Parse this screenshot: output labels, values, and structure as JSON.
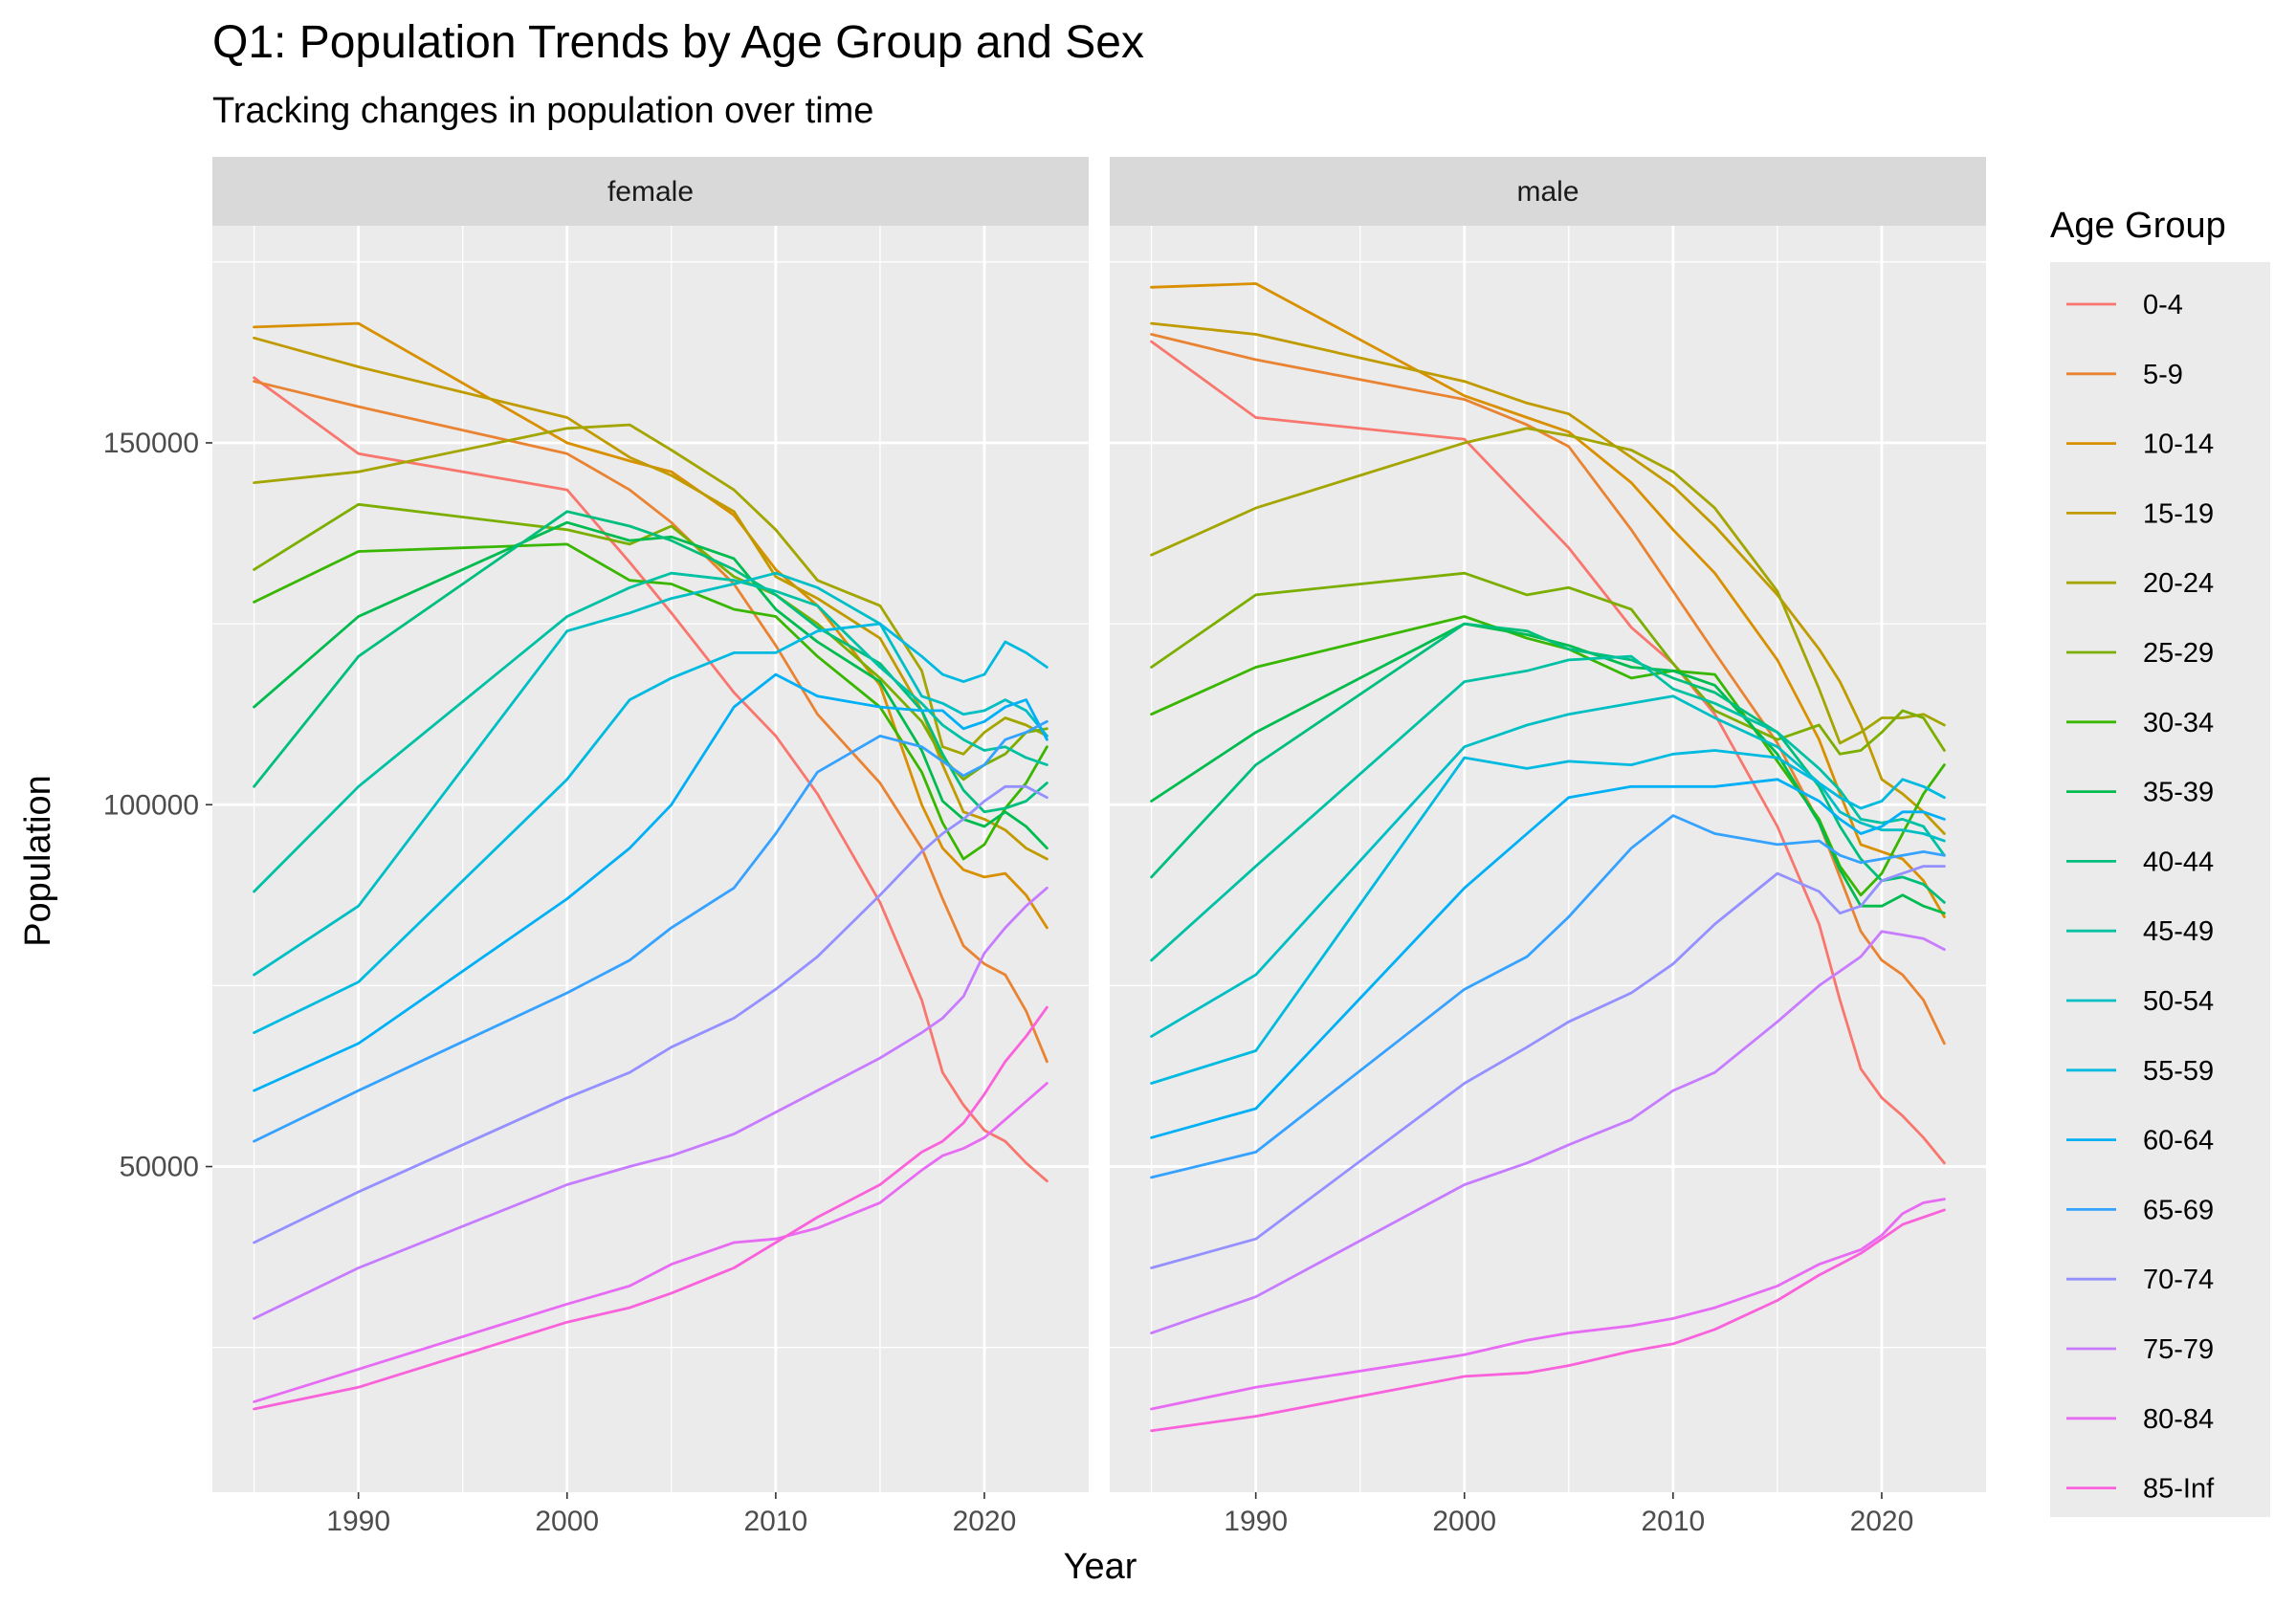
{
  "chart_data": {
    "type": "line",
    "title": "Q1: Population Trends by Age Group and Sex",
    "subtitle": "Tracking changes in population over time",
    "xlabel": "Year",
    "ylabel": "Population",
    "xlim": [
      1983,
      2025
    ],
    "ylim": [
      5000,
      180000
    ],
    "x_ticks": [
      1990,
      2000,
      2010,
      2020
    ],
    "y_ticks": [
      50000,
      100000,
      150000
    ],
    "grid": true,
    "legend": {
      "title": "Age Group",
      "placement": "right"
    },
    "x": [
      1985,
      1990,
      2000,
      2003,
      2005,
      2008,
      2010,
      2012,
      2015,
      2017,
      2018,
      2019,
      2020,
      2021,
      2022,
      2023
    ],
    "series_names": [
      "0-4",
      "5-9",
      "10-14",
      "15-19",
      "20-24",
      "25-29",
      "30-34",
      "35-39",
      "40-44",
      "45-49",
      "50-54",
      "55-59",
      "60-64",
      "65-69",
      "70-74",
      "75-79",
      "80-84",
      "85-Inf"
    ],
    "colors": [
      "#F8766D",
      "#EA8331",
      "#D89000",
      "#C09B00",
      "#A3A500",
      "#7CAE00",
      "#39B600",
      "#00BB4E",
      "#00BF7D",
      "#00C1A3",
      "#00BFC4",
      "#00BAE0",
      "#00B0F6",
      "#35A2FF",
      "#9590FF",
      "#C77CFF",
      "#E76BF3",
      "#FA62DB",
      "#FF62BC",
      "#FF6C91"
    ],
    "panels": [
      {
        "label": "female",
        "series": [
          {
            "name": "0-4",
            "values": [
              159000,
              148500,
              143500,
              133500,
              126500,
              115500,
              109500,
              101500,
              86500,
              73000,
              63000,
              58500,
              55000,
              53500,
              50500,
              48000
            ]
          },
          {
            "name": "5-9",
            "values": [
              158500,
              155000,
              148500,
              143500,
              139000,
              130500,
              122000,
              112500,
              103000,
              94000,
              87000,
              80500,
              78000,
              76500,
              71500,
              64500
            ]
          },
          {
            "name": "10-14",
            "values": [
              166000,
              166500,
              150000,
              147500,
              146000,
              140000,
              132500,
              127500,
              116500,
              100000,
              94000,
              91000,
              90000,
              90500,
              87500,
              83000
            ]
          },
          {
            "name": "15-19",
            "values": [
              164500,
              160500,
              153500,
              148000,
              145500,
              140500,
              131500,
              128500,
              123000,
              113000,
              105500,
              99000,
              98000,
              96500,
              94000,
              92500
            ]
          },
          {
            "name": "20-24",
            "values": [
              144500,
              146000,
              152000,
              152500,
              149000,
              143500,
              138000,
              131000,
              127500,
              118500,
              108000,
              107000,
              110000,
              112000,
              111000,
              109500
            ]
          },
          {
            "name": "25-29",
            "values": [
              132500,
              141500,
              138000,
              136000,
              138500,
              131500,
              129000,
              125000,
              117500,
              111500,
              106500,
              103500,
              105500,
              107000,
              110000,
              110500
            ]
          },
          {
            "name": "30-34",
            "values": [
              128000,
              135000,
              136000,
              131000,
              130500,
              127000,
              126000,
              120500,
              113500,
              104500,
              97500,
              92500,
              94500,
              99500,
              103000,
              108000
            ]
          },
          {
            "name": "35-39",
            "values": [
              113500,
              126000,
              139000,
              136500,
              137000,
              134000,
              127000,
              122500,
              117000,
              107500,
              100500,
              98000,
              97000,
              99000,
              97000,
              94000
            ]
          },
          {
            "name": "40-44",
            "values": [
              102500,
              120500,
              140500,
              138500,
              136500,
              132500,
              129000,
              124500,
              119500,
              113000,
              107000,
              102000,
              99000,
              99500,
              100500,
              103000
            ]
          },
          {
            "name": "45-49",
            "values": [
              88000,
              102500,
              126000,
              130000,
              132000,
              131000,
              129500,
              127500,
              119000,
              114000,
              111000,
              109000,
              107500,
              108000,
              106500,
              105500
            ]
          },
          {
            "name": "50-54",
            "values": [
              76500,
              86000,
              124000,
              126500,
              128500,
              130500,
              132000,
              130000,
              125000,
              115000,
              114000,
              112500,
              113000,
              114500,
              113000,
              109500
            ]
          },
          {
            "name": "55-59",
            "values": [
              68500,
              75500,
              103500,
              114500,
              117500,
              121000,
              121000,
              124000,
              125000,
              120500,
              118000,
              117000,
              118000,
              122500,
              121000,
              119000
            ]
          },
          {
            "name": "60-64",
            "values": [
              60500,
              67000,
              87000,
              94000,
              100000,
              113500,
              118000,
              115000,
              113500,
              113000,
              113000,
              110500,
              111500,
              113500,
              114500,
              109000
            ]
          },
          {
            "name": "65-69",
            "values": [
              53500,
              60500,
              74000,
              78500,
              83000,
              88500,
              96000,
              104500,
              109500,
              108000,
              106000,
              104000,
              105500,
              109000,
              110000,
              111500
            ]
          },
          {
            "name": "70-74",
            "values": [
              39500,
              46500,
              59500,
              63000,
              66500,
              70500,
              74500,
              79000,
              87500,
              93500,
              96000,
              98000,
              100500,
              102500,
              102500,
              101000
            ]
          },
          {
            "name": "75-79",
            "values": [
              29000,
              36000,
              47500,
              50000,
              51500,
              54500,
              57500,
              60500,
              65000,
              68500,
              70500,
              73500,
              79500,
              83000,
              86000,
              88500
            ]
          },
          {
            "name": "80-84",
            "values": [
              17500,
              22000,
              31000,
              33500,
              36500,
              39500,
              40000,
              41500,
              45000,
              49500,
              51500,
              52500,
              54000,
              56500,
              59000,
              61500
            ]
          },
          {
            "name": "85-Inf",
            "values": [
              16500,
              19500,
              28500,
              30500,
              32500,
              36000,
              39500,
              43000,
              47500,
              52000,
              53500,
              56000,
              60000,
              64500,
              68000,
              72000
            ]
          }
        ]
      },
      {
        "label": "male",
        "series": [
          {
            "name": "0-4",
            "values": [
              164000,
              153500,
              150500,
              141500,
              135500,
              124500,
              119500,
              112500,
              97000,
              83500,
              73000,
              63500,
              59500,
              57000,
              54000,
              50500
            ]
          },
          {
            "name": "5-9",
            "values": [
              165000,
              161500,
              156000,
              152500,
              149500,
              138000,
              129500,
              121000,
              108500,
              97500,
              90000,
              82500,
              78500,
              76500,
              73000,
              67000
            ]
          },
          {
            "name": "10-14",
            "values": [
              171500,
              172000,
              156500,
              153500,
              151500,
              144500,
              138000,
              132000,
              120000,
              109000,
              101500,
              94500,
              93500,
              92500,
              89500,
              84500
            ]
          },
          {
            "name": "15-19",
            "values": [
              166500,
              165000,
              158500,
              155500,
              154000,
              148000,
              144000,
              138500,
              129000,
              121500,
              117000,
              111000,
              103500,
              101500,
              99000,
              96000
            ]
          },
          {
            "name": "20-24",
            "values": [
              134500,
              141000,
              150000,
              152000,
              151000,
              149000,
              146000,
              141000,
              129500,
              116000,
              108500,
              110000,
              112000,
              112000,
              112500,
              111000
            ]
          },
          {
            "name": "25-29",
            "values": [
              119000,
              129000,
              132000,
              129000,
              130000,
              127000,
              119500,
              113000,
              109000,
              111000,
              107000,
              107500,
              110000,
              113000,
              112000,
              107500
            ]
          },
          {
            "name": "30-34",
            "values": [
              112500,
              119000,
              126000,
              123000,
              121500,
              117500,
              118500,
              118000,
              106000,
              98000,
              91500,
              87500,
              90500,
              96000,
              101500,
              105500
            ]
          },
          {
            "name": "35-39",
            "values": [
              100500,
              110000,
              125000,
              123500,
              122000,
              119000,
              118500,
              116500,
              107000,
              97500,
              91000,
              86000,
              86000,
              87500,
              86000,
              85000
            ]
          },
          {
            "name": "40-44",
            "values": [
              90000,
              105500,
              125000,
              124000,
              121500,
              120000,
              117500,
              115500,
              110000,
              102500,
              97000,
              92500,
              89500,
              90000,
              89000,
              86500
            ]
          },
          {
            "name": "45-49",
            "values": [
              78500,
              91500,
              117000,
              118500,
              120000,
              120500,
              116000,
              114000,
              110000,
              105000,
              102000,
              98000,
              97500,
              98000,
              97000,
              93000
            ]
          },
          {
            "name": "50-54",
            "values": [
              68000,
              76500,
              108000,
              111000,
              112500,
              114000,
              115000,
              112000,
              108000,
              103000,
              99000,
              97500,
              96500,
              96500,
              96000,
              95000
            ]
          },
          {
            "name": "55-59",
            "values": [
              61500,
              66000,
              106500,
              105000,
              106000,
              105500,
              107000,
              107500,
              106500,
              103000,
              101000,
              99500,
              100500,
              103500,
              102500,
              101000
            ]
          },
          {
            "name": "60-64",
            "values": [
              54000,
              58000,
              88500,
              96000,
              101000,
              102500,
              102500,
              102500,
              103500,
              100500,
              98000,
              96000,
              97000,
              99000,
              99000,
              98000
            ]
          },
          {
            "name": "65-69",
            "values": [
              48500,
              52000,
              74500,
              79000,
              84500,
              94000,
              98500,
              96000,
              94500,
              95000,
              93000,
              92000,
              92500,
              93000,
              93500,
              93000
            ]
          },
          {
            "name": "70-74",
            "values": [
              36000,
              40000,
              61500,
              66500,
              70000,
              74000,
              78000,
              83500,
              90500,
              88000,
              85000,
              86000,
              89500,
              90500,
              91500,
              91500
            ]
          },
          {
            "name": "75-79",
            "values": [
              27000,
              32000,
              47500,
              50500,
              53000,
              56500,
              60500,
              63000,
              70000,
              75000,
              77000,
              79000,
              82500,
              82000,
              81500,
              80000
            ]
          },
          {
            "name": "80-84",
            "values": [
              16500,
              19500,
              24000,
              26000,
              27000,
              28000,
              29000,
              30500,
              33500,
              36500,
              37500,
              38500,
              40500,
              43500,
              45000,
              45500
            ]
          },
          {
            "name": "85-Inf",
            "values": [
              13500,
              15500,
              21000,
              21500,
              22500,
              24500,
              25500,
              27500,
              31500,
              35000,
              36500,
              38000,
              40000,
              42000,
              43000,
              44000
            ]
          }
        ]
      }
    ]
  }
}
